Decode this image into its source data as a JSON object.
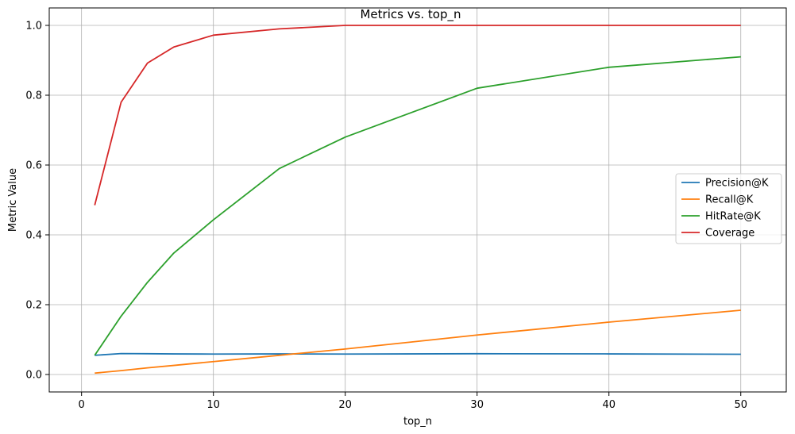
{
  "chart_data": {
    "type": "line",
    "title": "Metrics vs. top_n",
    "xlabel": "top_n",
    "ylabel": "Metric Value",
    "xlim": [
      -2.45,
      53.45
    ],
    "ylim": [
      -0.05,
      1.05
    ],
    "xticks": [
      0,
      10,
      20,
      30,
      40,
      50
    ],
    "yticks": [
      0.0,
      0.2,
      0.4,
      0.6,
      0.8,
      1.0
    ],
    "xtick_labels": [
      "0",
      "10",
      "20",
      "30",
      "40",
      "50"
    ],
    "ytick_labels": [
      "0.0",
      "0.2",
      "0.4",
      "0.6",
      "0.8",
      "1.0"
    ],
    "grid": true,
    "legend_position": "center-right",
    "x": [
      1,
      3,
      5,
      7,
      10,
      15,
      20,
      30,
      40,
      50
    ],
    "series": [
      {
        "name": "Precision@K",
        "color": "#1f77b4",
        "values": [
          0.055,
          0.06,
          0.0595,
          0.059,
          0.0585,
          0.059,
          0.0585,
          0.0595,
          0.059,
          0.058
        ]
      },
      {
        "name": "Recall@K",
        "color": "#ff7f0e",
        "values": [
          0.004,
          0.011,
          0.019,
          0.026,
          0.037,
          0.055,
          0.073,
          0.113,
          0.15,
          0.184
        ]
      },
      {
        "name": "HitRate@K",
        "color": "#2ca02c",
        "values": [
          0.055,
          0.167,
          0.264,
          0.348,
          0.443,
          0.59,
          0.68,
          0.82,
          0.88,
          0.91
        ]
      },
      {
        "name": "Coverage",
        "color": "#d62728",
        "values": [
          0.485,
          0.78,
          0.892,
          0.938,
          0.972,
          0.99,
          1.0,
          1.0,
          1.0,
          1.0
        ]
      }
    ]
  }
}
